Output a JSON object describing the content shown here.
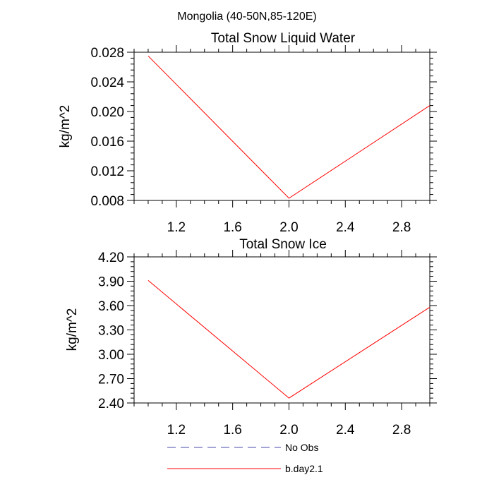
{
  "header": {
    "region_title": "Mongolia (40-50N,85-120E)"
  },
  "colors": {
    "series": "#ff0000",
    "obs": "#4a4aa8",
    "axis": "#000000"
  },
  "legend": {
    "placement": "bottom",
    "items": [
      {
        "label": "No Obs",
        "style": "dashed",
        "color": "#4a4aa8"
      },
      {
        "label": "b.day2.1",
        "style": "solid",
        "color": "#ff0000"
      }
    ]
  },
  "chart_data": [
    {
      "type": "line",
      "title": "Total Snow Liquid Water",
      "xlabel": "",
      "ylabel": "kg/m^2",
      "xlim": [
        0.9,
        3.0
      ],
      "ylim": [
        0.008,
        0.028
      ],
      "xticks": [
        1.2,
        1.6,
        2.0,
        2.4,
        2.8
      ],
      "xtick_labels": [
        "1.2",
        "1.6",
        "2.0",
        "2.4",
        "2.8"
      ],
      "yticks": [
        0.008,
        0.012,
        0.016,
        0.02,
        0.024,
        0.028
      ],
      "ytick_labels": [
        "0.008",
        "0.012",
        "0.016",
        "0.020",
        "0.024",
        "0.028"
      ],
      "grid": false,
      "series": [
        {
          "name": "b.day2.1",
          "x": [
            1.0,
            2.0,
            3.0
          ],
          "y": [
            0.0275,
            0.0083,
            0.0208
          ]
        }
      ]
    },
    {
      "type": "line",
      "title": "Total Snow Ice",
      "xlabel": "",
      "ylabel": "kg/m^2",
      "xlim": [
        0.9,
        3.0
      ],
      "ylim": [
        2.4,
        4.2
      ],
      "xticks": [
        1.2,
        1.6,
        2.0,
        2.4,
        2.8
      ],
      "xtick_labels": [
        "1.2",
        "1.6",
        "2.0",
        "2.4",
        "2.8"
      ],
      "yticks": [
        2.4,
        2.7,
        3.0,
        3.3,
        3.6,
        3.9,
        4.2
      ],
      "ytick_labels": [
        "2.40",
        "2.70",
        "3.00",
        "3.30",
        "3.60",
        "3.90",
        "4.20"
      ],
      "grid": false,
      "series": [
        {
          "name": "b.day2.1",
          "x": [
            1.0,
            2.0,
            3.0
          ],
          "y": [
            3.91,
            2.46,
            3.58
          ]
        }
      ]
    }
  ]
}
